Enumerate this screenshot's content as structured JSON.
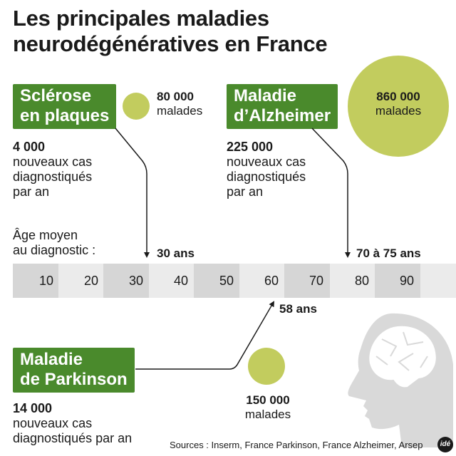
{
  "title": {
    "line1": "Les principales maladies",
    "line2": "neurodégénératives en France"
  },
  "diseases": [
    {
      "name_line1": "Sclérose",
      "name_line2": "en plaques",
      "patients_count": "80 000",
      "patients_label": "malades",
      "new_cases_count": "4 000",
      "new_cases_line1": "nouveaux cas",
      "new_cases_line2": "diagnostiqués",
      "new_cases_line3": "par an",
      "mean_age": "30 ans"
    },
    {
      "name_line1": "Maladie",
      "name_line2": "d’Alzheimer",
      "patients_count": "860 000",
      "patients_label": "malades",
      "new_cases_count": "225 000",
      "new_cases_line1": "nouveaux cas",
      "new_cases_line2": "diagnostiqués",
      "new_cases_line3": "par an",
      "mean_age": "70 à 75 ans"
    },
    {
      "name_line1": "Maladie",
      "name_line2": "de Parkinson",
      "patients_count": "150 000",
      "patients_label": "malades",
      "new_cases_count": "14 000",
      "new_cases_line1": "nouveaux cas",
      "new_cases_line2": "diagnostiqués par an",
      "mean_age": "58 ans"
    }
  ],
  "age_label": {
    "line1": "Âge moyen",
    "line2": "au diagnostic :"
  },
  "age_scale": {
    "ticks": [
      "10",
      "20",
      "30",
      "40",
      "50",
      "60",
      "70",
      "80",
      "90"
    ]
  },
  "sources": "Sources : Inserm, France Parkinson, France Alzheimer, Arsep",
  "logo": "idé",
  "colors": {
    "green_box": "#4a8a2c",
    "circle": "#c2cc5e",
    "scale_dark": "#d6d6d6",
    "scale_light": "#ebebeb",
    "head_silhouette": "#d9d9d9"
  }
}
